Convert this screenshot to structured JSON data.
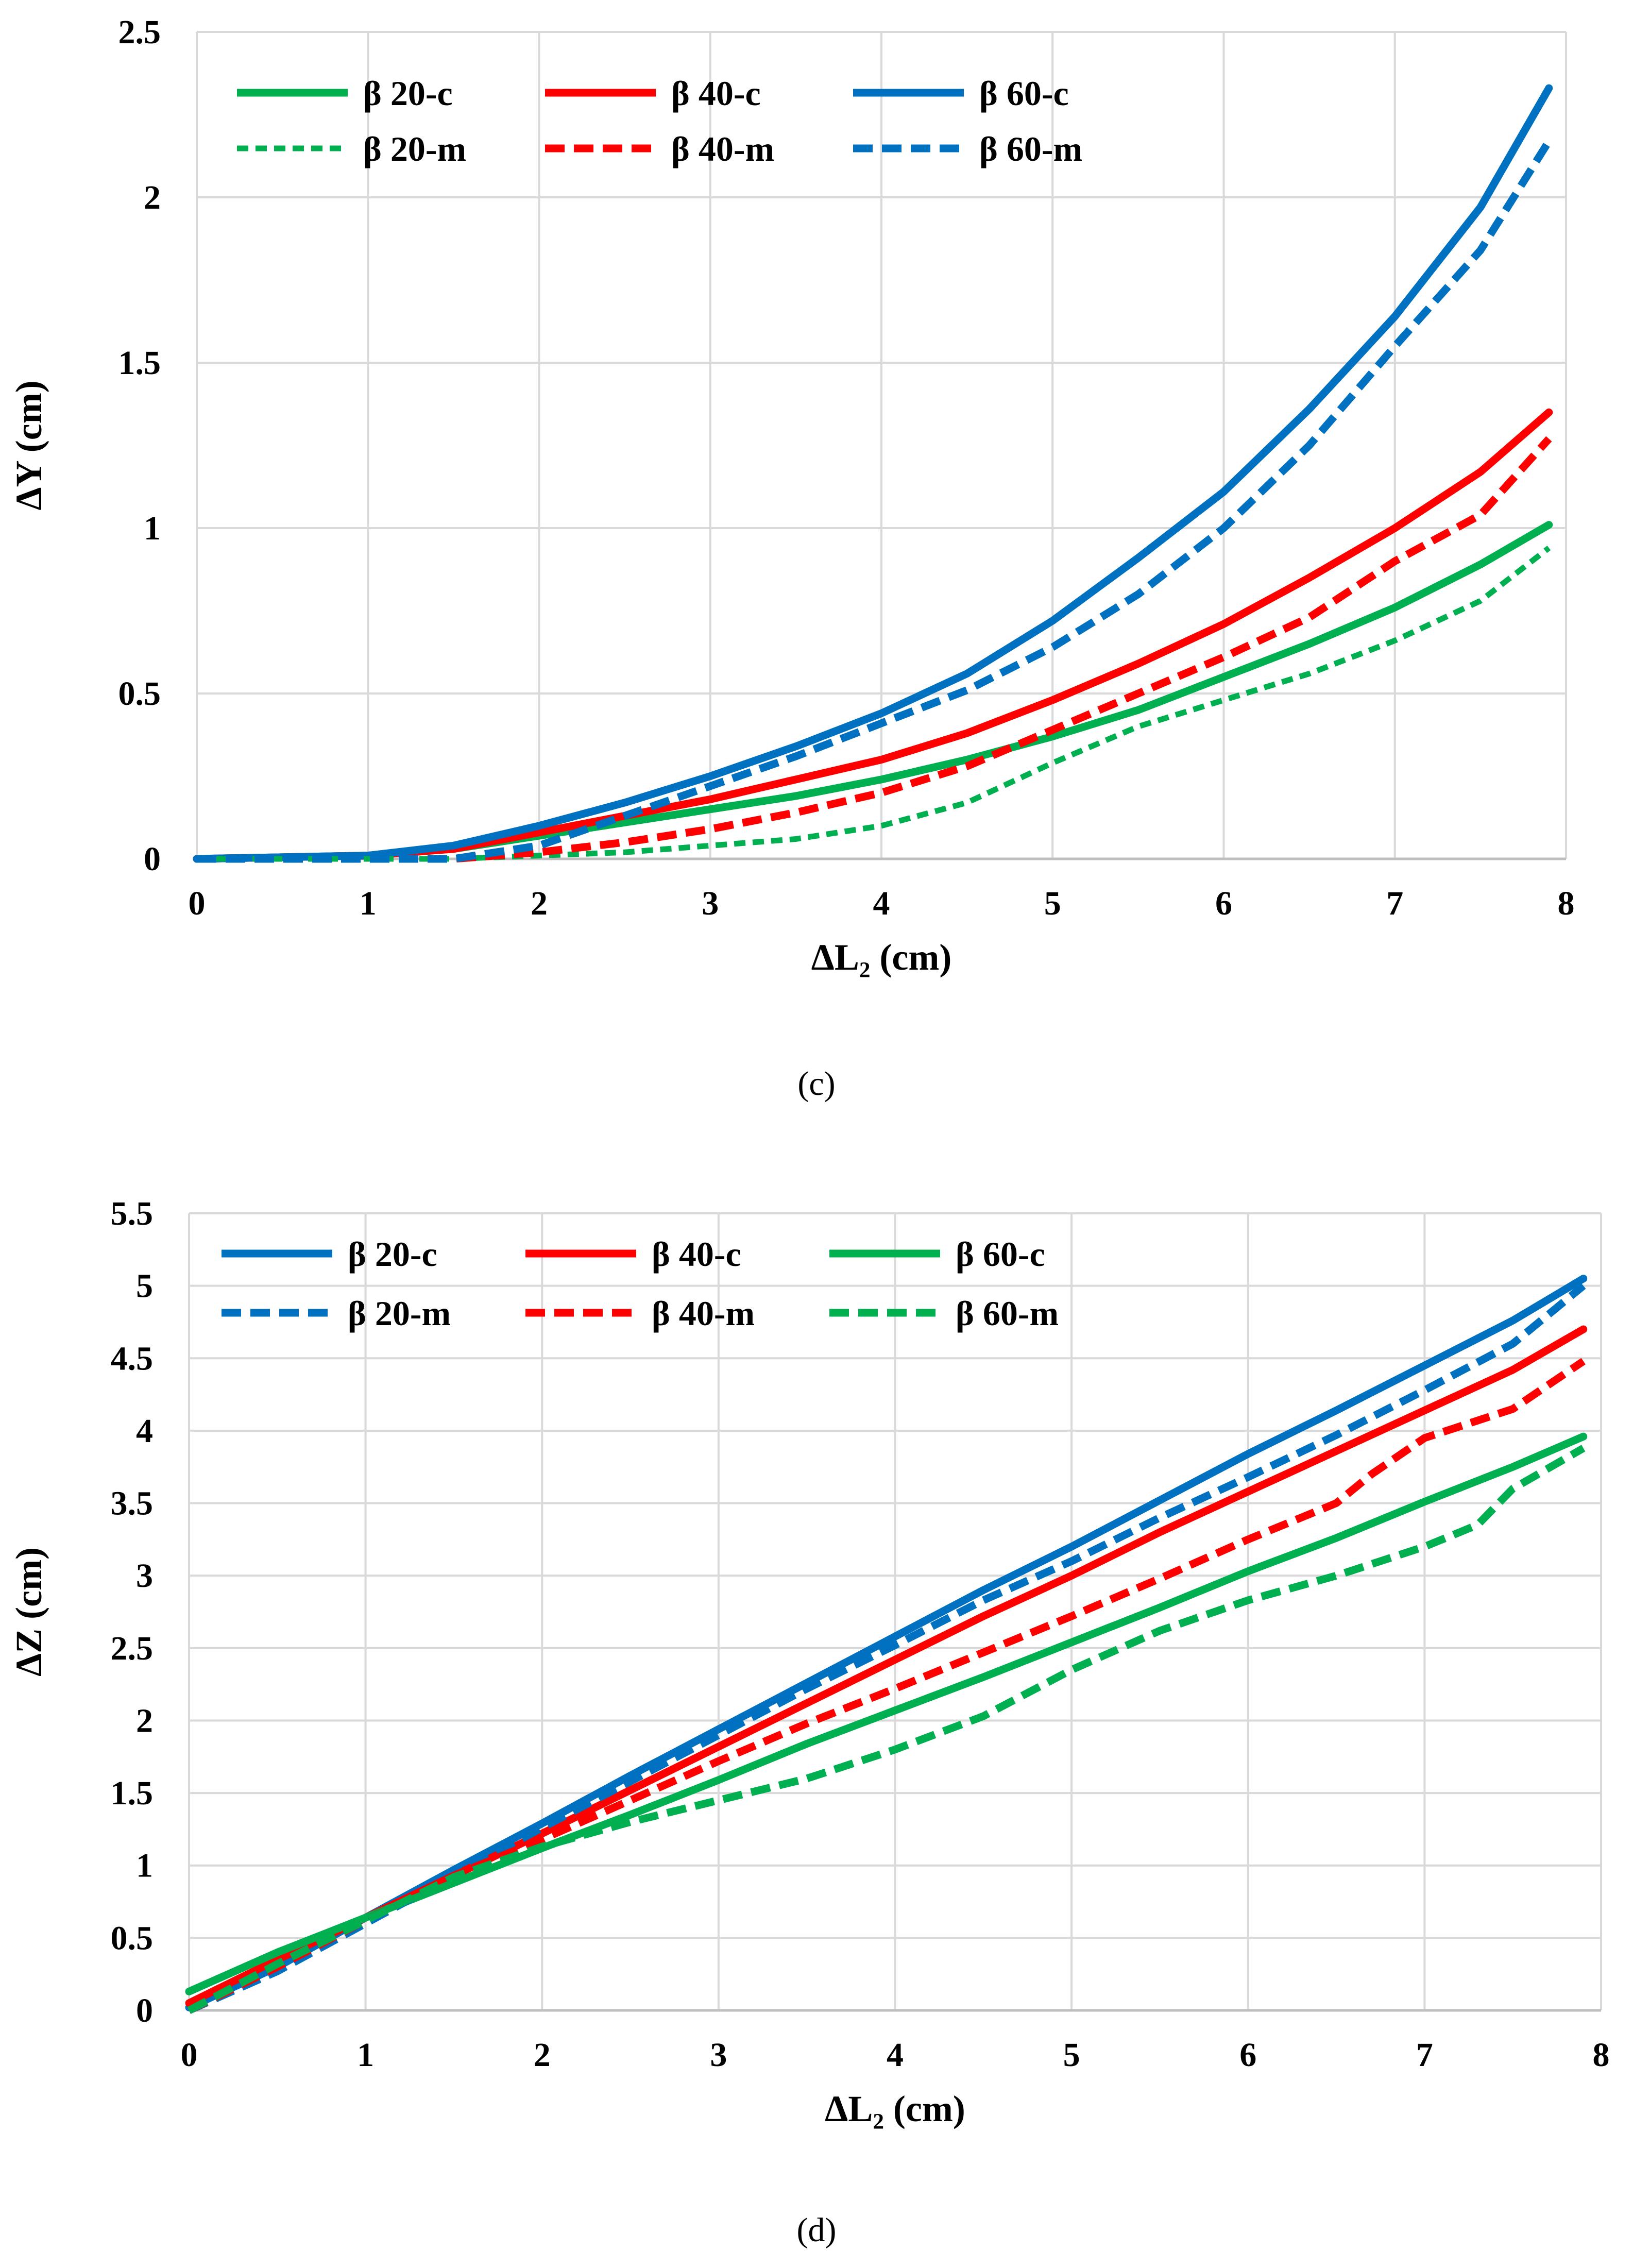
{
  "colors": {
    "green": "#00b050",
    "red": "#ff0000",
    "blue": "#0070c0",
    "grid": "#d9d9d9"
  },
  "chart_data": [
    {
      "type": "line",
      "panel": "(c)",
      "xlabel": "ΔL₂ (cm)",
      "ylabel": "ΔY (cm)",
      "xlim": [
        0,
        8
      ],
      "ylim": [
        0,
        2.5
      ],
      "x_ticks": [
        "0",
        "1",
        "2",
        "3",
        "4",
        "5",
        "6",
        "7",
        "8"
      ],
      "y_ticks": [
        "0",
        "0.5",
        "1",
        "1.5",
        "2",
        "2.5"
      ],
      "grid": true,
      "legend_position": "top-left",
      "series": [
        {
          "name": "β 20-c",
          "color": "#00b050",
          "style": "solid",
          "x": [
            0,
            1,
            1.5,
            2,
            2.5,
            3,
            3.5,
            4,
            4.5,
            5,
            5.5,
            6,
            6.5,
            7,
            7.5,
            7.9
          ],
          "y": [
            0,
            0.01,
            0.03,
            0.07,
            0.11,
            0.15,
            0.19,
            0.24,
            0.3,
            0.37,
            0.45,
            0.55,
            0.65,
            0.76,
            0.89,
            1.01
          ]
        },
        {
          "name": "β 40-c",
          "color": "#ff0000",
          "style": "solid",
          "x": [
            0,
            1,
            1.5,
            2,
            2.5,
            3,
            3.5,
            4,
            4.5,
            5,
            5.5,
            6,
            6.5,
            7,
            7.5,
            7.9
          ],
          "y": [
            0,
            0.01,
            0.03,
            0.08,
            0.13,
            0.18,
            0.24,
            0.3,
            0.38,
            0.48,
            0.59,
            0.71,
            0.85,
            1.0,
            1.17,
            1.35
          ]
        },
        {
          "name": "β 60-c",
          "color": "#0070c0",
          "style": "solid",
          "x": [
            0,
            1,
            1.5,
            2,
            2.5,
            3,
            3.5,
            4,
            4.5,
            5,
            5.5,
            6,
            6.5,
            7,
            7.5,
            7.9
          ],
          "y": [
            0,
            0.01,
            0.04,
            0.1,
            0.17,
            0.25,
            0.34,
            0.44,
            0.56,
            0.72,
            0.91,
            1.11,
            1.36,
            1.64,
            1.97,
            2.33
          ]
        },
        {
          "name": "β 20-m",
          "color": "#00b050",
          "style": "dotted",
          "x": [
            0,
            1,
            1.5,
            2,
            2.5,
            3,
            3.5,
            4,
            4.5,
            5,
            5.5,
            6,
            6.5,
            7,
            7.5,
            7.9
          ],
          "y": [
            0,
            0,
            0,
            0.01,
            0.02,
            0.04,
            0.06,
            0.1,
            0.17,
            0.29,
            0.4,
            0.48,
            0.56,
            0.66,
            0.78,
            0.94
          ]
        },
        {
          "name": "β 40-m",
          "color": "#ff0000",
          "style": "dashed",
          "x": [
            0,
            1,
            1.5,
            2,
            2.5,
            3,
            3.5,
            4,
            4.5,
            5,
            5.5,
            6,
            6.5,
            7,
            7.5,
            7.9
          ],
          "y": [
            0,
            0,
            0,
            0.02,
            0.05,
            0.09,
            0.14,
            0.2,
            0.28,
            0.39,
            0.5,
            0.61,
            0.73,
            0.9,
            1.04,
            1.27
          ]
        },
        {
          "name": "β 60-m",
          "color": "#0070c0",
          "style": "dashed",
          "x": [
            0,
            1,
            1.5,
            2,
            2.5,
            3,
            3.5,
            4,
            4.5,
            5,
            5.5,
            6,
            6.5,
            7,
            7.5,
            7.9
          ],
          "y": [
            0,
            0,
            0,
            0.04,
            0.13,
            0.22,
            0.31,
            0.41,
            0.51,
            0.64,
            0.8,
            1.0,
            1.25,
            1.55,
            1.84,
            2.17
          ]
        }
      ]
    },
    {
      "type": "line",
      "panel": "(d)",
      "xlabel": "ΔL₂ (cm)",
      "ylabel": "ΔZ (cm)",
      "xlim": [
        0,
        8
      ],
      "ylim": [
        0,
        5.5
      ],
      "x_ticks": [
        "0",
        "1",
        "2",
        "3",
        "4",
        "5",
        "6",
        "7",
        "8"
      ],
      "y_ticks": [
        "0",
        "0.5",
        "1",
        "1.5",
        "2",
        "2.5",
        "3",
        "3.5",
        "4",
        "4.5",
        "5",
        "5.5"
      ],
      "grid": true,
      "legend_position": "top-left",
      "series": [
        {
          "name": "β 20-c",
          "color": "#0070c0",
          "style": "solid",
          "x": [
            0,
            0.5,
            1,
            1.5,
            2,
            2.5,
            3,
            3.5,
            4,
            4.5,
            5,
            5.5,
            6,
            6.5,
            7,
            7.5,
            7.9
          ],
          "y": [
            0.02,
            0.3,
            0.64,
            0.97,
            1.29,
            1.62,
            1.94,
            2.26,
            2.58,
            2.9,
            3.2,
            3.52,
            3.84,
            4.14,
            4.45,
            4.76,
            5.05
          ]
        },
        {
          "name": "β 40-c",
          "color": "#ff0000",
          "style": "solid",
          "x": [
            0,
            0.5,
            1,
            1.5,
            2,
            2.5,
            3,
            3.5,
            4,
            4.5,
            5,
            5.5,
            6,
            6.5,
            7,
            7.5,
            7.9
          ],
          "y": [
            0.05,
            0.35,
            0.64,
            0.93,
            1.22,
            1.52,
            1.82,
            2.12,
            2.42,
            2.72,
            3.0,
            3.3,
            3.58,
            3.86,
            4.14,
            4.42,
            4.7
          ]
        },
        {
          "name": "β 60-c",
          "color": "#00b050",
          "style": "solid",
          "x": [
            0,
            0.5,
            1,
            1.5,
            2,
            2.5,
            3,
            3.5,
            4,
            4.5,
            5,
            5.5,
            6,
            6.5,
            7,
            7.5,
            7.9
          ],
          "y": [
            0.13,
            0.4,
            0.64,
            0.88,
            1.12,
            1.35,
            1.59,
            1.84,
            2.07,
            2.3,
            2.54,
            2.78,
            3.03,
            3.26,
            3.51,
            3.75,
            3.96
          ]
        },
        {
          "name": "β 20-m",
          "color": "#0070c0",
          "style": "dashed",
          "x": [
            0,
            0.5,
            1,
            1.5,
            2,
            2.5,
            3,
            3.5,
            4,
            4.5,
            5,
            5.5,
            6,
            6.5,
            7,
            7.5,
            7.9
          ],
          "y": [
            0,
            0.27,
            0.6,
            0.93,
            1.26,
            1.58,
            1.9,
            2.22,
            2.52,
            2.83,
            3.1,
            3.4,
            3.68,
            3.97,
            4.28,
            4.6,
            5.0
          ]
        },
        {
          "name": "β 40-m",
          "color": "#ff0000",
          "style": "dashed",
          "x": [
            0,
            0.5,
            1,
            1.5,
            2,
            2.5,
            3,
            3.5,
            4,
            4.5,
            5,
            5.5,
            6,
            6.5,
            6.7,
            7,
            7.5,
            7.9
          ],
          "y": [
            0,
            0.3,
            0.62,
            0.93,
            1.18,
            1.45,
            1.72,
            1.98,
            2.22,
            2.47,
            2.72,
            2.98,
            3.25,
            3.5,
            3.7,
            3.95,
            4.15,
            4.48
          ]
        },
        {
          "name": "β 60-m",
          "color": "#00b050",
          "style": "dashed",
          "x": [
            0,
            0.5,
            1,
            1.5,
            2,
            2.5,
            3,
            3.5,
            4,
            4.5,
            5,
            5.5,
            6,
            6.5,
            7,
            7.3,
            7.5,
            7.9
          ],
          "y": [
            0,
            0.32,
            0.62,
            0.92,
            1.13,
            1.3,
            1.45,
            1.6,
            1.8,
            2.03,
            2.35,
            2.62,
            2.83,
            3.0,
            3.2,
            3.35,
            3.6,
            3.88
          ]
        }
      ]
    }
  ]
}
